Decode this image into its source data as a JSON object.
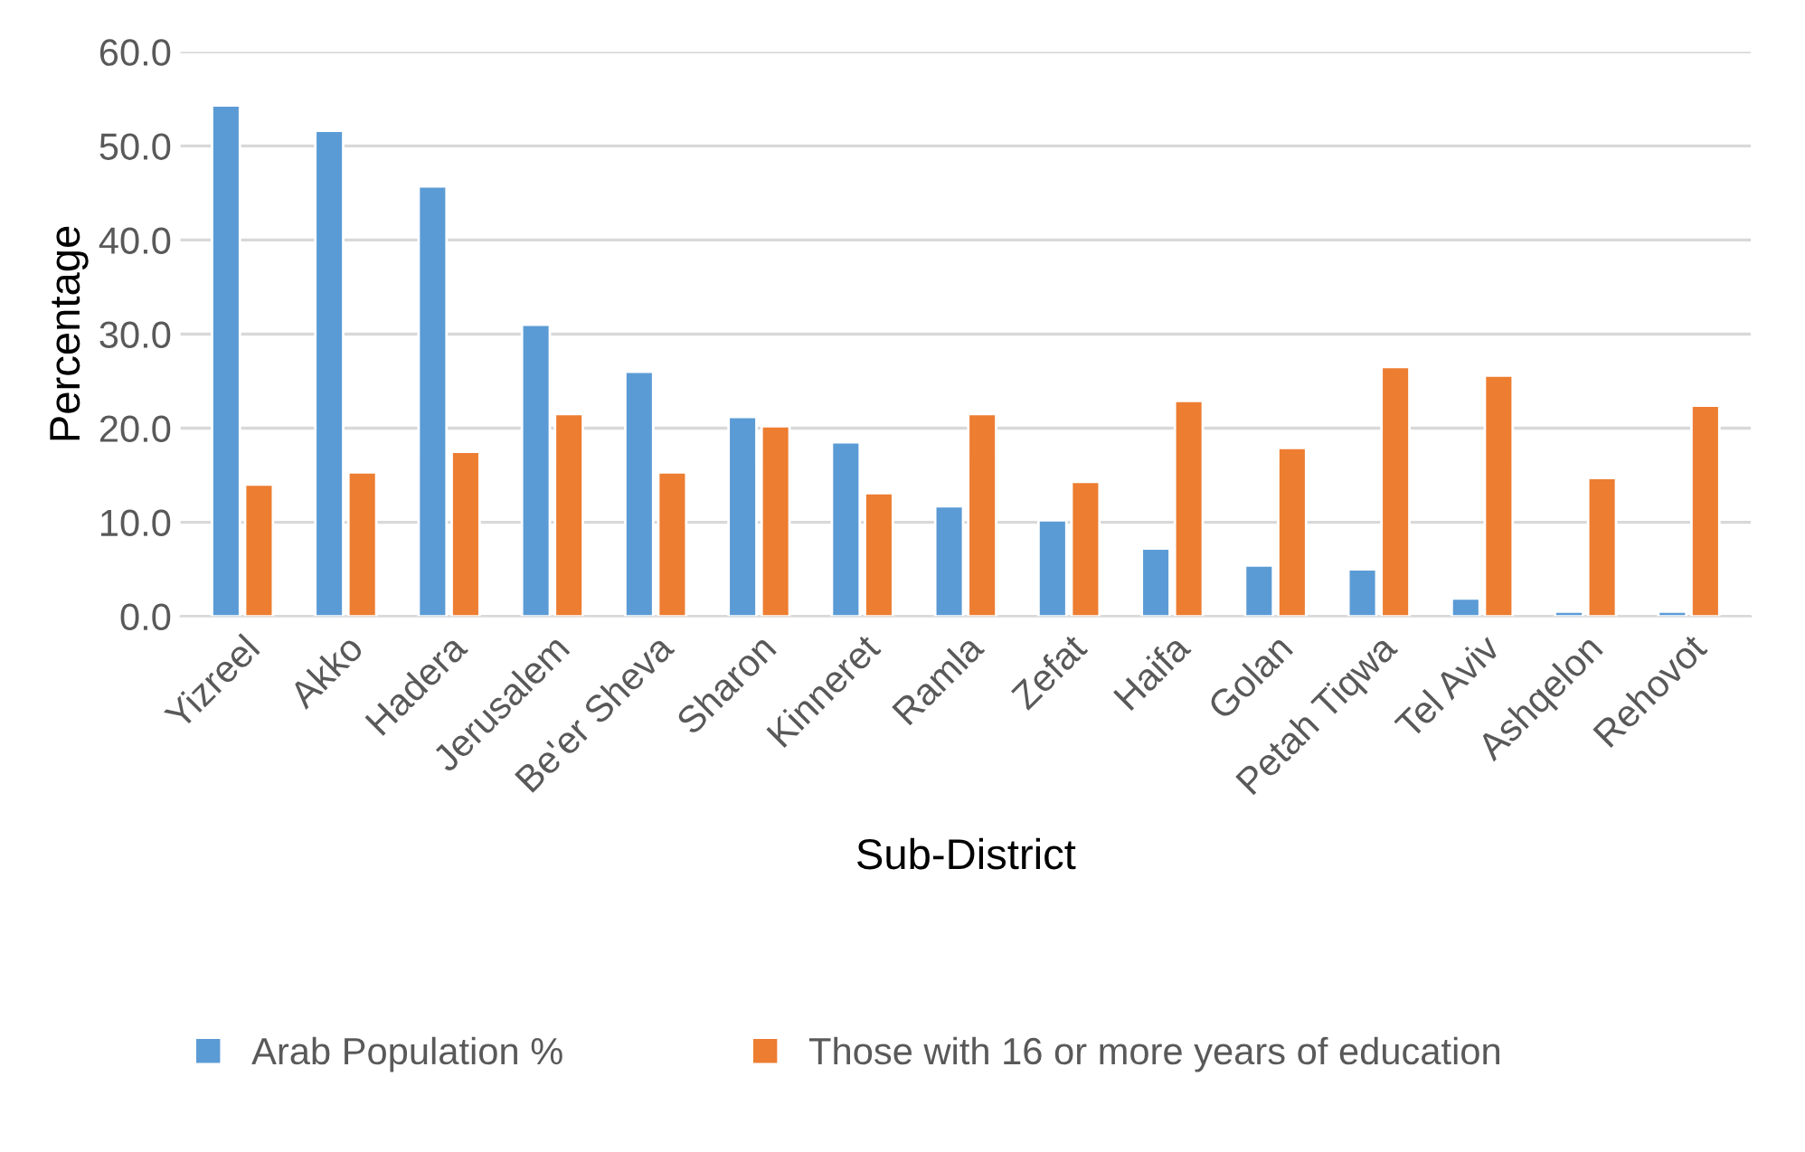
{
  "chart_data": {
    "type": "bar",
    "xlabel": "Sub-District",
    "ylabel": "Percentage",
    "categories": [
      "Yizreel",
      "Akko",
      "Hadera",
      "Jerusalem",
      "Be'er Sheva",
      "Sharon",
      "Kinneret",
      "Ramla",
      "Zefat",
      "Haifa",
      "Golan",
      "Petah Tiqwa",
      "Tel Aviv",
      "Ashqelon",
      "Rehovot"
    ],
    "series": [
      {
        "name": "Arab Population %",
        "color": "#5b9bd5",
        "values": [
          54.3,
          51.6,
          45.7,
          31.0,
          26.0,
          21.2,
          18.5,
          11.7,
          10.2,
          7.2,
          5.4,
          5.0,
          1.9,
          0.5,
          0.5
        ]
      },
      {
        "name": "Those with 16 or more years of education",
        "color": "#ed7d31",
        "values": [
          14.0,
          15.3,
          17.5,
          21.5,
          15.3,
          20.2,
          13.1,
          21.5,
          14.3,
          22.9,
          17.9,
          26.5,
          25.6,
          14.7,
          22.4
        ]
      }
    ],
    "ylim": [
      0,
      60
    ],
    "yticks": [
      {
        "value": 0,
        "label": "0.0"
      },
      {
        "value": 10,
        "label": "10.0"
      },
      {
        "value": 20,
        "label": "20.0"
      },
      {
        "value": 30,
        "label": "30.0"
      },
      {
        "value": 40,
        "label": "40.0"
      },
      {
        "value": 50,
        "label": "50.0"
      },
      {
        "value": 60,
        "label": "60.0"
      }
    ],
    "grid": "y",
    "legend": "bottom"
  }
}
